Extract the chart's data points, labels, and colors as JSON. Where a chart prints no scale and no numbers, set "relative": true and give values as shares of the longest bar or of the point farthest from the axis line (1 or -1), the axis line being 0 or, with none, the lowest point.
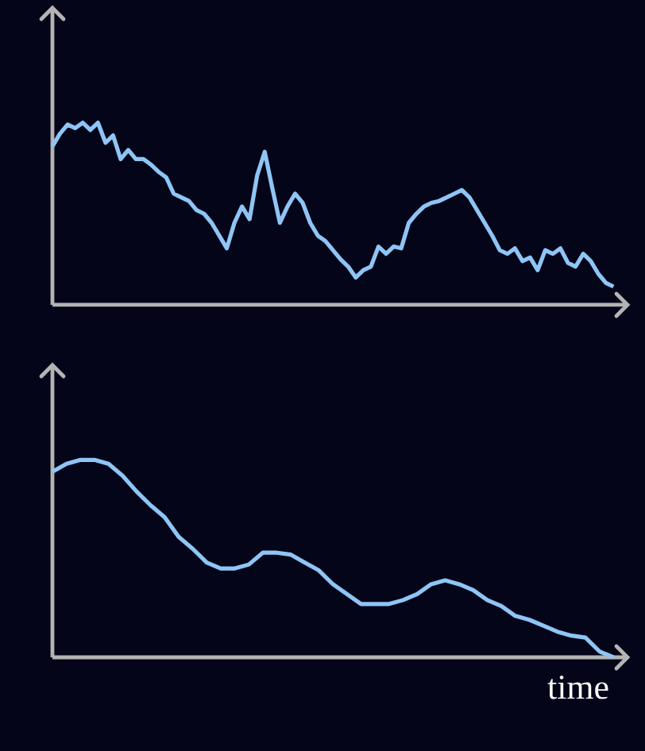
{
  "chart_data": [
    {
      "type": "line",
      "relative": true,
      "categories": [
        null,
        null,
        null,
        null,
        null,
        null,
        null,
        null,
        null,
        null,
        null,
        null,
        null,
        null,
        null,
        null,
        null,
        null,
        null,
        null,
        null,
        null,
        null,
        null,
        null,
        null,
        null,
        null,
        null,
        null,
        null,
        null,
        null,
        null,
        null,
        null,
        null,
        null,
        null,
        null,
        null,
        null,
        null,
        null,
        null,
        null,
        null,
        null,
        null,
        null,
        null,
        null,
        null,
        null,
        null,
        null,
        null,
        null,
        null,
        null,
        null,
        null,
        null,
        null,
        null,
        null,
        null,
        null,
        null,
        null,
        null,
        null,
        null,
        null,
        null
      ],
      "series": [
        {
          "color": "#8ec5f5",
          "values": [
            0.87,
            0.94,
            0.99,
            0.97,
            1.0,
            0.96,
            1.0,
            0.89,
            0.93,
            0.8,
            0.85,
            0.8,
            0.8,
            0.77,
            0.73,
            0.7,
            0.61,
            0.59,
            0.57,
            0.52,
            0.5,
            0.45,
            0.38,
            0.31,
            0.45,
            0.54,
            0.47,
            0.71,
            0.84,
            0.64,
            0.45,
            0.54,
            0.61,
            0.56,
            0.45,
            0.38,
            0.35,
            0.3,
            0.25,
            0.21,
            0.15,
            0.19,
            0.21,
            0.32,
            0.28,
            0.32,
            0.31,
            0.45,
            0.5,
            0.54,
            0.56,
            0.57,
            0.59,
            0.61,
            0.63,
            0.59,
            0.52,
            0.45,
            0.38,
            0.3,
            0.28,
            0.31,
            0.24,
            0.26,
            0.19,
            0.3,
            0.28,
            0.31,
            0.23,
            0.21,
            0.28,
            0.24,
            0.17,
            0.12,
            0.1
          ]
        }
      ]
    },
    {
      "type": "line",
      "relative": true,
      "xlabel": "time",
      "categories": [
        null,
        null,
        null,
        null,
        null,
        null,
        null,
        null,
        null,
        null,
        null,
        null,
        null,
        null,
        null,
        null,
        null,
        null,
        null,
        null,
        null,
        null,
        null,
        null,
        null,
        null,
        null,
        null,
        null,
        null,
        null,
        null,
        null,
        null,
        null,
        null,
        null,
        null,
        null,
        null,
        null
      ],
      "series": [
        {
          "color": "#8ec5f5",
          "values": [
            0.94,
            0.98,
            1.0,
            1.0,
            0.98,
            0.92,
            0.84,
            0.77,
            0.71,
            0.61,
            0.55,
            0.48,
            0.45,
            0.45,
            0.47,
            0.53,
            0.53,
            0.52,
            0.48,
            0.44,
            0.37,
            0.32,
            0.27,
            0.27,
            0.27,
            0.29,
            0.32,
            0.37,
            0.39,
            0.37,
            0.34,
            0.29,
            0.26,
            0.21,
            0.19,
            0.16,
            0.13,
            0.11,
            0.1,
            0.03,
            0
          ]
        }
      ]
    }
  ]
}
